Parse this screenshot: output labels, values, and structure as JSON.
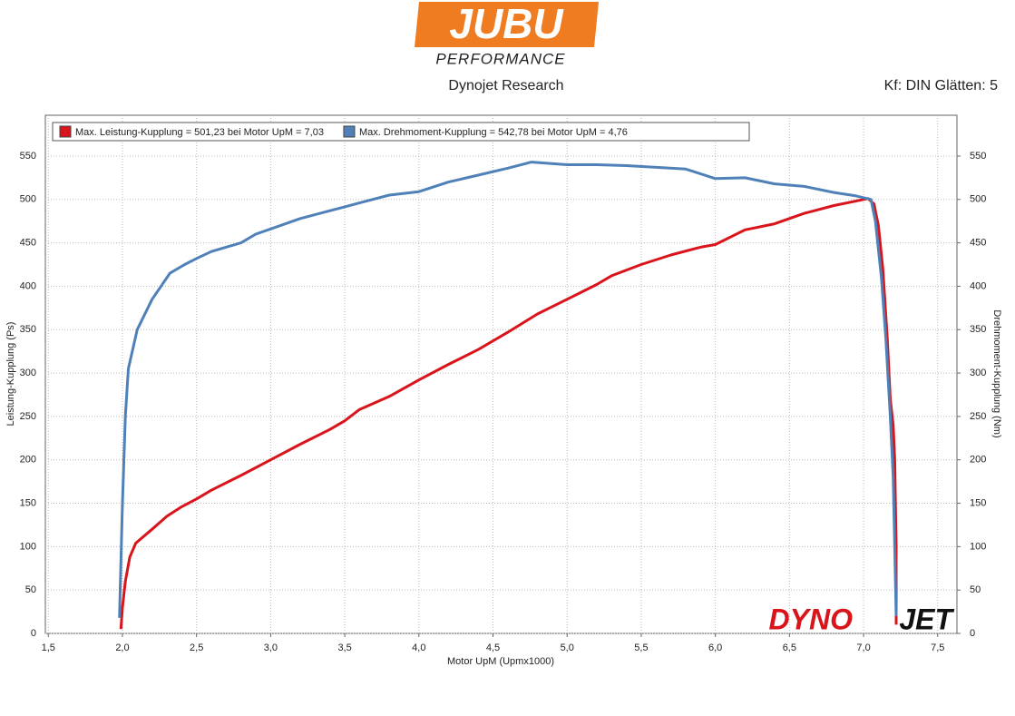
{
  "logo": {
    "brand": "JUBU",
    "tagline": "PERFORMANCE",
    "watermark_left": "DYNO",
    "watermark_right": "JET"
  },
  "chart_data": {
    "type": "line",
    "subtitle": "Dynojet Research",
    "settings_text": "Kf: DIN Glätten: 5",
    "xlabel": "Motor UpM (Upmx1000)",
    "ylabel": "Leistung-Kupplung (Ps)",
    "y2label": "Drehmoment-Kupplung (Nm)",
    "xlim": [
      1.48,
      7.63
    ],
    "xticks": [
      {
        "value": 1.5,
        "label": "1,5"
      },
      {
        "value": 2,
        "label": "2,0"
      },
      {
        "value": 2.5,
        "label": "2,5"
      },
      {
        "value": 3,
        "label": "3,0"
      },
      {
        "value": 3.5,
        "label": "3,5"
      },
      {
        "value": 4,
        "label": "4,0"
      },
      {
        "value": 4.5,
        "label": "4,5"
      },
      {
        "value": 5,
        "label": "5,0"
      },
      {
        "value": 5.5,
        "label": "5,5"
      },
      {
        "value": 6,
        "label": "6,0"
      },
      {
        "value": 6.5,
        "label": "6,5"
      },
      {
        "value": 7,
        "label": "7,0"
      },
      {
        "value": 7.5,
        "label": "7,5"
      }
    ],
    "ylim": [
      0,
      597
    ],
    "yticks": [
      0,
      50,
      100,
      150,
      200,
      250,
      300,
      350,
      400,
      450,
      500,
      550
    ],
    "y2lim": [
      0,
      597
    ],
    "y2ticks": [
      0,
      50,
      100,
      150,
      200,
      250,
      300,
      350,
      400,
      450,
      500,
      550
    ],
    "grid": true,
    "series": [
      {
        "name": "Max. Leistung-Kupplung = 501,23 bei Motor UpM = 7,03",
        "color": "#d9141b",
        "axis": "y",
        "x": [
          1.99,
          2.0,
          2.02,
          2.05,
          2.09,
          2.2,
          2.3,
          2.4,
          2.5,
          2.6,
          2.8,
          3.0,
          3.2,
          3.4,
          3.5,
          3.6,
          3.8,
          4.0,
          4.2,
          4.4,
          4.6,
          4.8,
          5.0,
          5.2,
          5.3,
          5.5,
          5.7,
          5.9,
          6.0,
          6.2,
          6.4,
          6.6,
          6.8,
          7.03,
          7.07,
          7.1,
          7.13,
          7.16,
          7.18,
          7.2,
          7.21,
          7.22,
          7.22
        ],
        "values": [
          5,
          30,
          60,
          88,
          104,
          120,
          135,
          146,
          155,
          165,
          182,
          200,
          218,
          235,
          245,
          258,
          273,
          292,
          310,
          327,
          347,
          368,
          385,
          402,
          412,
          425,
          436,
          445,
          448,
          465,
          472,
          484,
          493,
          501,
          495,
          470,
          420,
          340,
          270,
          240,
          200,
          100,
          10
        ]
      },
      {
        "name": "Max. Drehmoment-Kupplung = 542,78 bei Motor UpM = 4,76",
        "color": "#4f81b8",
        "axis": "y2",
        "x": [
          1.98,
          2.0,
          2.02,
          2.04,
          2.1,
          2.2,
          2.32,
          2.42,
          2.5,
          2.6,
          2.8,
          2.9,
          3.0,
          3.2,
          3.4,
          3.6,
          3.8,
          4.0,
          4.2,
          4.4,
          4.6,
          4.76,
          5.0,
          5.2,
          5.4,
          5.6,
          5.8,
          6.0,
          6.2,
          6.4,
          6.6,
          6.8,
          6.95,
          7.05,
          7.08,
          7.12,
          7.15,
          7.18,
          7.2,
          7.21,
          7.22
        ],
        "values": [
          18,
          150,
          250,
          305,
          350,
          385,
          415,
          425,
          432,
          440,
          450,
          460,
          466,
          478,
          487,
          496,
          505,
          509,
          520,
          528,
          536,
          543,
          540,
          540,
          539,
          537,
          535,
          524,
          525,
          518,
          515,
          508,
          504,
          500,
          475,
          410,
          340,
          250,
          180,
          100,
          20
        ]
      }
    ]
  }
}
